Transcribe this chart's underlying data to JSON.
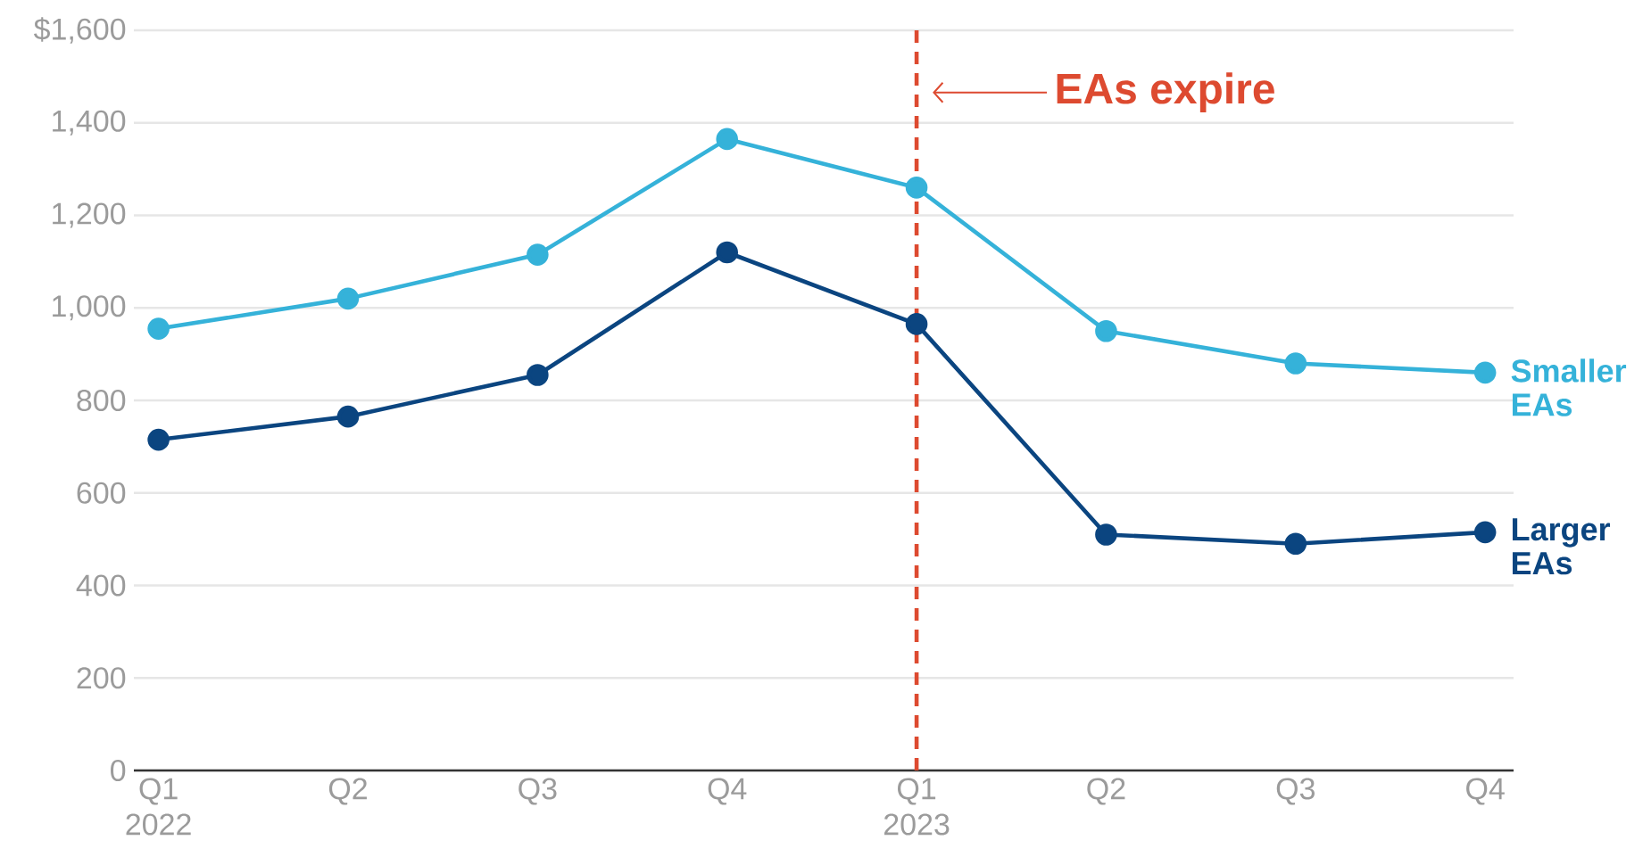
{
  "chart_data": {
    "type": "line",
    "categories": [
      "Q1 2022",
      "Q2",
      "Q3",
      "Q4",
      "Q1 2023",
      "Q2",
      "Q3",
      "Q4"
    ],
    "series": [
      {
        "name": "Smaller EAs",
        "color": "#35b2d9",
        "values": [
          955,
          1020,
          1115,
          1365,
          1260,
          950,
          880,
          860
        ]
      },
      {
        "name": "Larger EAs",
        "color": "#0b4580",
        "values": [
          715,
          765,
          855,
          1120,
          965,
          510,
          490,
          515
        ]
      }
    ],
    "ylim": [
      0,
      1600
    ],
    "yticks": [
      0,
      200,
      400,
      600,
      800,
      {
        "value": 1000,
        "label": "1,000"
      },
      {
        "value": 1200,
        "label": "1,200"
      },
      {
        "value": 1400,
        "label": "1,400"
      },
      {
        "value": 1600,
        "label": "$1,600"
      }
    ],
    "grid": "y",
    "marker": "circle",
    "line_style": "solid",
    "ref_lines": [
      {
        "axis": "x",
        "value": "Q1 2023",
        "label": "EAs expire",
        "color": "#dd4a30",
        "line_style": "dashed"
      }
    ]
  }
}
